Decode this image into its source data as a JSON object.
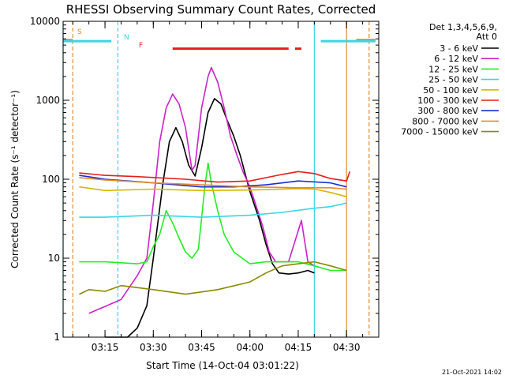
{
  "colors": {
    "background": "#ffffff",
    "axis": "#000000",
    "saa": "#e58b2c",
    "night": "#3ad6e6",
    "flare": "#e81c1c"
  },
  "chart_data": {
    "type": "line",
    "title": "RHESSI Observing Summary Count Rates, Corrected",
    "xlabel": "Start Time (14-Oct-04 03:01:22)",
    "ylabel": "Corrected Count Rate (s⁻¹ detector⁻¹)",
    "yscale": "log",
    "ylim": [
      1,
      10000
    ],
    "xlim": [
      "03:02",
      "04:40"
    ],
    "x_ticks": [
      "03:15",
      "03:30",
      "03:45",
      "04:00",
      "04:15",
      "04:30"
    ],
    "y_ticks": [
      "1",
      "10",
      "100",
      "1000",
      "10000"
    ],
    "grid": false,
    "legend_position": "right",
    "legend_header": [
      "Det 1,3,4,5,6,9,",
      "Att 0"
    ],
    "footer": "21-Oct-2021 14:02",
    "flags": [
      {
        "label": "S",
        "color": "#e58b2c",
        "y": 5800,
        "segments": [
          [
            "03:02",
            "03:05"
          ],
          [
            "04:33",
            "04:39"
          ]
        ]
      },
      {
        "label": "N",
        "color": "#3ad6e6",
        "y": 5600,
        "segments": [
          [
            "03:02",
            "03:17"
          ],
          [
            "04:22",
            "04:39"
          ]
        ]
      },
      {
        "label": "F",
        "color": "#e81c1c",
        "y": 4500,
        "segments": [
          [
            "03:36",
            "04:12"
          ],
          [
            "04:14",
            "04:16"
          ]
        ]
      }
    ],
    "vertical_lines": [
      {
        "time": "03:02",
        "color": "#3ad6e6",
        "style": "solid"
      },
      {
        "time": "03:05",
        "color": "#e58b2c",
        "style": "dashed"
      },
      {
        "time": "03:19",
        "color": "#3ad6e6",
        "style": "dashed"
      },
      {
        "time": "04:20",
        "color": "#3ad6e6",
        "style": "solid"
      },
      {
        "time": "04:30",
        "color": "#e58b2c",
        "style": "solid"
      },
      {
        "time": "04:37",
        "color": "#e58b2c",
        "style": "dashed"
      }
    ],
    "series": [
      {
        "name": "3 - 6 keV",
        "color": "#000000",
        "x": [
          "03:15",
          "03:22",
          "03:25",
          "03:28",
          "03:30",
          "03:33",
          "03:35",
          "03:37",
          "03:39",
          "03:41",
          "03:43",
          "03:45",
          "03:47",
          "03:49",
          "03:51",
          "03:53",
          "03:55",
          "03:57",
          "04:00",
          "04:03",
          "04:05",
          "04:07",
          "04:09",
          "04:12",
          "04:15",
          "04:18",
          "04:20"
        ],
        "values": [
          1.0,
          1.0,
          1.3,
          2.5,
          10,
          90,
          300,
          450,
          300,
          150,
          110,
          250,
          700,
          1050,
          900,
          550,
          350,
          200,
          70,
          30,
          15,
          8.5,
          6.5,
          6.3,
          6.5,
          7,
          6.5
        ]
      },
      {
        "name": "6 - 12 keV",
        "color": "#cc22cc",
        "x": [
          "03:10",
          "03:20",
          "03:25",
          "03:28",
          "03:30",
          "03:32",
          "03:34",
          "03:36",
          "03:38",
          "03:40",
          "03:42",
          "03:43",
          "03:45",
          "03:47",
          "03:48",
          "03:50",
          "03:52",
          "03:54",
          "03:56",
          "03:58",
          "04:00",
          "04:02",
          "04:04",
          "04:06",
          "04:08",
          "04:12",
          "04:16",
          "04:18",
          "04:20"
        ],
        "values": [
          2,
          3,
          6,
          10,
          50,
          300,
          800,
          1200,
          900,
          450,
          130,
          150,
          800,
          2000,
          2600,
          1700,
          800,
          350,
          200,
          120,
          80,
          45,
          25,
          12,
          9,
          9,
          30,
          9,
          8
        ]
      },
      {
        "name": "12 - 25 keV",
        "color": "#22ee22",
        "x": [
          "03:07",
          "03:15",
          "03:25",
          "03:28",
          "03:30",
          "03:32",
          "03:34",
          "03:36",
          "03:38",
          "03:40",
          "03:42",
          "03:44",
          "03:46",
          "03:47",
          "03:48",
          "03:50",
          "03:52",
          "03:55",
          "04:00",
          "04:05",
          "04:10",
          "04:15",
          "04:20",
          "04:25",
          "04:30"
        ],
        "values": [
          9,
          9,
          8.5,
          9,
          14,
          20,
          40,
          28,
          18,
          12,
          10,
          13,
          80,
          160,
          90,
          40,
          20,
          12,
          8.5,
          9,
          9,
          9,
          8,
          7,
          7
        ]
      },
      {
        "name": "25 - 50 keV",
        "color": "#3ad6e6",
        "x": [
          "03:07",
          "03:15",
          "03:30",
          "03:45",
          "04:00",
          "04:10",
          "04:20",
          "04:25",
          "04:30"
        ],
        "values": [
          33,
          33,
          35,
          33,
          35,
          38,
          43,
          45,
          50
        ]
      },
      {
        "name": "50 - 100 keV",
        "color": "#d6b800",
        "x": [
          "03:07",
          "03:15",
          "03:30",
          "03:45",
          "04:00",
          "04:15",
          "04:20",
          "04:25",
          "04:30"
        ],
        "values": [
          80,
          72,
          75,
          72,
          73,
          76,
          75,
          68,
          60
        ]
      },
      {
        "name": "100 - 300 keV",
        "color": "#e81c1c",
        "x": [
          "03:07",
          "03:15",
          "03:25",
          "03:40",
          "03:50",
          "04:00",
          "04:10",
          "04:15",
          "04:20",
          "04:25",
          "04:30",
          "04:31"
        ],
        "values": [
          120,
          112,
          108,
          100,
          92,
          95,
          115,
          125,
          118,
          102,
          95,
          125
        ]
      },
      {
        "name": "300 - 800 keV",
        "color": "#1a2bd6",
        "x": [
          "03:07",
          "03:15",
          "03:30",
          "03:45",
          "03:55",
          "04:05",
          "04:15",
          "04:25",
          "04:30"
        ],
        "values": [
          112,
          100,
          90,
          80,
          80,
          85,
          95,
          90,
          80
        ]
      },
      {
        "name": "800 - 7000 keV",
        "color": "#e58b2c",
        "x": [
          "03:07",
          "03:15",
          "03:30",
          "03:45",
          "04:00",
          "04:15",
          "04:25",
          "04:30"
        ],
        "values": [
          105,
          98,
          90,
          85,
          80,
          78,
          78,
          75
        ]
      },
      {
        "name": "7000 - 15000 keV",
        "color": "#8a8a00",
        "x": [
          "03:07",
          "03:10",
          "03:15",
          "03:20",
          "03:30",
          "03:40",
          "03:50",
          "04:00",
          "04:05",
          "04:10",
          "04:15",
          "04:20",
          "04:25",
          "04:30"
        ],
        "values": [
          3.5,
          4,
          3.8,
          4.5,
          4,
          3.5,
          4,
          5,
          6.5,
          8,
          8.5,
          9,
          8,
          7
        ]
      }
    ]
  }
}
